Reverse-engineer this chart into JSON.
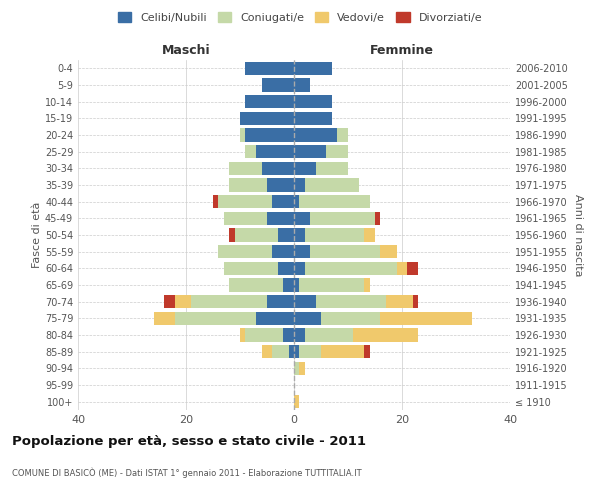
{
  "age_groups": [
    "100+",
    "95-99",
    "90-94",
    "85-89",
    "80-84",
    "75-79",
    "70-74",
    "65-69",
    "60-64",
    "55-59",
    "50-54",
    "45-49",
    "40-44",
    "35-39",
    "30-34",
    "25-29",
    "20-24",
    "15-19",
    "10-14",
    "5-9",
    "0-4"
  ],
  "birth_years": [
    "≤ 1910",
    "1911-1915",
    "1916-1920",
    "1921-1925",
    "1926-1930",
    "1931-1935",
    "1936-1940",
    "1941-1945",
    "1946-1950",
    "1951-1955",
    "1956-1960",
    "1961-1965",
    "1966-1970",
    "1971-1975",
    "1976-1980",
    "1981-1985",
    "1986-1990",
    "1991-1995",
    "1996-2000",
    "2001-2005",
    "2006-2010"
  ],
  "colors": {
    "celibi": "#3a6ea5",
    "coniugati": "#c5d9a8",
    "vedovi": "#f0c96c",
    "divorziati": "#c0392b"
  },
  "maschi": {
    "celibi": [
      0,
      0,
      0,
      1,
      2,
      7,
      5,
      2,
      3,
      4,
      3,
      5,
      4,
      5,
      6,
      7,
      9,
      10,
      9,
      6,
      9
    ],
    "coniugati": [
      0,
      0,
      0,
      3,
      7,
      15,
      14,
      10,
      10,
      10,
      8,
      8,
      10,
      7,
      6,
      2,
      1,
      0,
      0,
      0,
      0
    ],
    "vedovi": [
      0,
      0,
      0,
      2,
      1,
      4,
      3,
      0,
      0,
      0,
      0,
      0,
      0,
      0,
      0,
      0,
      0,
      0,
      0,
      0,
      0
    ],
    "divorziati": [
      0,
      0,
      0,
      0,
      0,
      0,
      2,
      0,
      0,
      0,
      1,
      0,
      1,
      0,
      0,
      0,
      0,
      0,
      0,
      0,
      0
    ]
  },
  "femmine": {
    "celibi": [
      0,
      0,
      0,
      1,
      2,
      5,
      4,
      1,
      2,
      3,
      2,
      3,
      1,
      2,
      4,
      6,
      8,
      7,
      7,
      3,
      7
    ],
    "coniugati": [
      0,
      0,
      1,
      4,
      9,
      11,
      13,
      12,
      17,
      13,
      11,
      12,
      13,
      10,
      6,
      4,
      2,
      0,
      0,
      0,
      0
    ],
    "vedovi": [
      1,
      0,
      1,
      8,
      12,
      17,
      5,
      1,
      2,
      3,
      2,
      0,
      0,
      0,
      0,
      0,
      0,
      0,
      0,
      0,
      0
    ],
    "divorziati": [
      0,
      0,
      0,
      1,
      0,
      0,
      1,
      0,
      2,
      0,
      0,
      1,
      0,
      0,
      0,
      0,
      0,
      0,
      0,
      0,
      0
    ]
  },
  "title": "Popolazione per età, sesso e stato civile - 2011",
  "subtitle": "COMUNE DI BASICÒ (ME) - Dati ISTAT 1° gennaio 2011 - Elaborazione TUTTITALIA.IT",
  "ylabel_left": "Fasce di età",
  "ylabel_right": "Anni di nascita",
  "xlabel_maschi": "Maschi",
  "xlabel_femmine": "Femmine",
  "xlim": 40,
  "legend_labels": [
    "Celibi/Nubili",
    "Coniugati/e",
    "Vedovi/e",
    "Divorziati/e"
  ],
  "background_color": "#ffffff",
  "grid_color": "#cccccc"
}
